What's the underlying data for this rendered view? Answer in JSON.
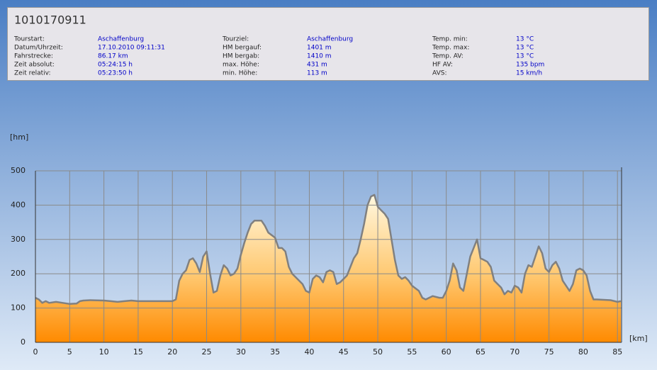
{
  "header": {
    "title": "1010170911",
    "columns": [
      [
        [
          "Tourstart:",
          "Aschaffenburg"
        ],
        [
          "Datum/Uhrzeit:",
          "17.10.2010 09:11:31"
        ],
        [
          "Fahrstrecke:",
          "86.17 km"
        ],
        [
          "Zeit absolut:",
          "05:24:15 h"
        ],
        [
          "Zeit relativ:",
          "05:23:50 h"
        ]
      ],
      [
        [
          "Tourziel:",
          "Aschaffenburg"
        ],
        [
          "HM bergauf:",
          "1401 m"
        ],
        [
          "HM bergab:",
          "1410 m"
        ],
        [
          "max. Höhe:",
          "431 m"
        ],
        [
          "min. Höhe:",
          "113 m"
        ]
      ],
      [
        [
          "Temp. min:",
          "13 °C"
        ],
        [
          "Temp. max:",
          "13 °C"
        ],
        [
          "Temp. AV:",
          "13 °C"
        ],
        [
          "HF AV:",
          "135 bpm"
        ],
        [
          "AVS:",
          "15 km/h"
        ]
      ]
    ]
  },
  "chart_data": {
    "type": "area",
    "y_label": "[hm]",
    "x_label": "[km]",
    "x": [
      0,
      0.5,
      1,
      1.5,
      2,
      3,
      4,
      5,
      6,
      6.5,
      7,
      8,
      10,
      11,
      12,
      13,
      14,
      15,
      17,
      19,
      20,
      20.5,
      21,
      21.5,
      22,
      22.5,
      23,
      23.5,
      24,
      24.5,
      25,
      25.5,
      26,
      26.5,
      27,
      27.5,
      28,
      28.5,
      29,
      29.5,
      30,
      30.5,
      31,
      31.5,
      32,
      33,
      33.5,
      34,
      35,
      35.5,
      36,
      36.5,
      37,
      37.5,
      38,
      39,
      39.5,
      40,
      40.5,
      41,
      41.5,
      42,
      42.5,
      43,
      43.5,
      44,
      44.5,
      45,
      45.5,
      46,
      46.5,
      47,
      47.5,
      48,
      48.5,
      49,
      49.5,
      50,
      50.5,
      51,
      51.5,
      52,
      52.5,
      53,
      53.5,
      54,
      54.5,
      55,
      56,
      56.5,
      57,
      57.5,
      58,
      59,
      59.5,
      60,
      60.5,
      61,
      61.5,
      62,
      62.5,
      63,
      63.5,
      64,
      64.5,
      65,
      65.5,
      66,
      66.5,
      67,
      67.5,
      68,
      68.5,
      69,
      69.5,
      70,
      70.5,
      71,
      71.5,
      72,
      72.5,
      73,
      73.5,
      74,
      74.5,
      75,
      75.5,
      76,
      76.5,
      77,
      77.5,
      78,
      78.5,
      79,
      79.5,
      80,
      80.5,
      81,
      81.5,
      82,
      84,
      85,
      85.5
    ],
    "values": [
      130,
      125,
      115,
      120,
      115,
      118,
      115,
      112,
      113,
      120,
      122,
      123,
      122,
      120,
      118,
      120,
      122,
      120,
      120,
      120,
      120,
      125,
      180,
      200,
      210,
      240,
      245,
      230,
      205,
      250,
      265,
      200,
      145,
      150,
      195,
      225,
      215,
      195,
      200,
      215,
      255,
      290,
      320,
      345,
      355,
      355,
      340,
      320,
      305,
      275,
      275,
      265,
      220,
      200,
      190,
      170,
      150,
      145,
      185,
      195,
      190,
      175,
      205,
      210,
      205,
      170,
      175,
      185,
      195,
      220,
      245,
      260,
      300,
      345,
      400,
      425,
      430,
      395,
      385,
      375,
      360,
      300,
      240,
      195,
      185,
      190,
      180,
      165,
      150,
      130,
      125,
      130,
      135,
      130,
      130,
      150,
      180,
      230,
      210,
      160,
      150,
      200,
      250,
      275,
      300,
      245,
      240,
      235,
      220,
      180,
      170,
      160,
      140,
      150,
      145,
      165,
      160,
      145,
      200,
      225,
      220,
      250,
      280,
      260,
      215,
      205,
      225,
      235,
      215,
      180,
      165,
      150,
      170,
      210,
      215,
      210,
      195,
      150,
      125,
      125,
      123,
      118,
      120
    ],
    "color": "#808080",
    "xlim": [
      0,
      85.6
    ],
    "ylim": [
      0,
      500
    ],
    "xticks": [
      0,
      5,
      10,
      15,
      20,
      25,
      30,
      35,
      40,
      45,
      50,
      55,
      60,
      65,
      70,
      75,
      80,
      85
    ],
    "yticks": [
      0,
      100,
      200,
      300,
      400,
      500
    ],
    "grid": true
  }
}
